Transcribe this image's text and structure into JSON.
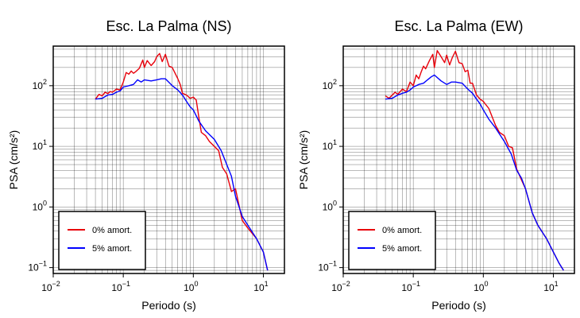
{
  "chart_data": [
    {
      "type": "line",
      "title": "Esc. La Palma (NS)",
      "xlabel": "Periodo (s)",
      "ylabel": "PSA (cm/s²)",
      "xscale": "log",
      "yscale": "log",
      "xlim": [
        0.01,
        20
      ],
      "ylim": [
        0.08,
        450
      ],
      "grid": true,
      "legend_position": "bottom-left",
      "x_ticks": [
        {
          "value": 0.01,
          "base": "10",
          "exp": "−2"
        },
        {
          "value": 0.1,
          "base": "10",
          "exp": "−1"
        },
        {
          "value": 1,
          "base": "10",
          "exp": "0"
        },
        {
          "value": 10,
          "base": "10",
          "exp": "1"
        }
      ],
      "y_ticks": [
        {
          "value": 0.1,
          "base": "10",
          "exp": "−1"
        },
        {
          "value": 1,
          "base": "10",
          "exp": "0"
        },
        {
          "value": 10,
          "base": "10",
          "exp": "1"
        },
        {
          "value": 100,
          "base": "10",
          "exp": "2"
        }
      ],
      "series": [
        {
          "name": "0% amort.",
          "color": "#e8000b",
          "x": [
            0.04,
            0.045,
            0.05,
            0.055,
            0.06,
            0.065,
            0.07,
            0.08,
            0.09,
            0.1,
            0.11,
            0.12,
            0.13,
            0.14,
            0.15,
            0.17,
            0.19,
            0.2,
            0.22,
            0.25,
            0.28,
            0.3,
            0.33,
            0.36,
            0.4,
            0.45,
            0.5,
            0.55,
            0.6,
            0.65,
            0.7,
            0.8,
            0.9,
            1.0,
            1.1,
            1.2,
            1.3,
            1.5,
            1.7,
            2.0,
            2.3,
            2.6,
            3.0,
            3.5,
            4.0,
            5.0,
            6.0,
            8.0,
            10.0,
            11.5
          ],
          "y": [
            60,
            72,
            68,
            78,
            74,
            80,
            78,
            88,
            85,
            115,
            165,
            155,
            175,
            160,
            170,
            195,
            265,
            200,
            260,
            215,
            250,
            300,
            340,
            250,
            330,
            210,
            200,
            160,
            130,
            105,
            75,
            70,
            62,
            65,
            58,
            30,
            17,
            15,
            12,
            10,
            8.5,
            4.5,
            3.5,
            1.8,
            2.0,
            0.6,
            0.45,
            0.3,
            0.18,
            0.09
          ]
        },
        {
          "name": "5% amort.",
          "color": "#0000ff",
          "x": [
            0.04,
            0.05,
            0.06,
            0.07,
            0.08,
            0.09,
            0.1,
            0.12,
            0.14,
            0.16,
            0.18,
            0.2,
            0.25,
            0.3,
            0.35,
            0.4,
            0.5,
            0.6,
            0.7,
            0.8,
            0.9,
            1.0,
            1.2,
            1.5,
            2.0,
            2.5,
            3.0,
            3.5,
            4.0,
            5.0,
            6.0,
            8.0,
            10.0,
            11.5
          ],
          "y": [
            60,
            62,
            70,
            72,
            78,
            82,
            95,
            100,
            105,
            125,
            115,
            125,
            120,
            125,
            130,
            130,
            100,
            85,
            70,
            55,
            45,
            40,
            26,
            18,
            13,
            8.5,
            5,
            3.2,
            1.5,
            0.7,
            0.5,
            0.3,
            0.18,
            0.09
          ]
        }
      ]
    },
    {
      "type": "line",
      "title": "Esc. La Palma (EW)",
      "xlabel": "Periodo (s)",
      "ylabel": "PSA (cm/s²)",
      "xscale": "log",
      "yscale": "log",
      "xlim": [
        0.01,
        20
      ],
      "ylim": [
        0.08,
        450
      ],
      "grid": true,
      "legend_position": "bottom-left",
      "x_ticks": [
        {
          "value": 0.01,
          "base": "10",
          "exp": "−2"
        },
        {
          "value": 0.1,
          "base": "10",
          "exp": "−1"
        },
        {
          "value": 1,
          "base": "10",
          "exp": "0"
        },
        {
          "value": 10,
          "base": "10",
          "exp": "1"
        }
      ],
      "y_ticks": [
        {
          "value": 0.1,
          "base": "10",
          "exp": "−1"
        },
        {
          "value": 1,
          "base": "10",
          "exp": "0"
        },
        {
          "value": 10,
          "base": "10",
          "exp": "1"
        },
        {
          "value": 100,
          "base": "10",
          "exp": "2"
        }
      ],
      "series": [
        {
          "name": "0% amort.",
          "color": "#e8000b",
          "x": [
            0.04,
            0.045,
            0.05,
            0.055,
            0.06,
            0.07,
            0.08,
            0.09,
            0.1,
            0.11,
            0.12,
            0.13,
            0.14,
            0.15,
            0.17,
            0.19,
            0.2,
            0.22,
            0.25,
            0.28,
            0.3,
            0.33,
            0.36,
            0.4,
            0.45,
            0.5,
            0.55,
            0.6,
            0.65,
            0.7,
            0.8,
            0.9,
            1.0,
            1.2,
            1.5,
            1.7,
            2.0,
            2.3,
            2.6,
            3.0,
            3.5,
            4.0,
            5.0,
            6.0,
            8.0,
            10.0,
            12.0,
            14.0
          ],
          "y": [
            68,
            62,
            70,
            78,
            72,
            88,
            80,
            115,
            100,
            150,
            130,
            170,
            210,
            190,
            260,
            330,
            200,
            380,
            300,
            240,
            320,
            220,
            290,
            370,
            240,
            230,
            170,
            180,
            110,
            110,
            70,
            60,
            55,
            42,
            22,
            17,
            15,
            10,
            9.5,
            4.2,
            2.8,
            2.0,
            0.8,
            0.5,
            0.3,
            0.18,
            0.12,
            0.09
          ]
        },
        {
          "name": "5% amort.",
          "color": "#0000ff",
          "x": [
            0.04,
            0.05,
            0.06,
            0.07,
            0.08,
            0.09,
            0.1,
            0.12,
            0.14,
            0.16,
            0.18,
            0.2,
            0.25,
            0.3,
            0.35,
            0.4,
            0.5,
            0.6,
            0.7,
            0.8,
            0.9,
            1.0,
            1.2,
            1.5,
            2.0,
            2.5,
            3.0,
            3.5,
            4.0,
            5.0,
            6.0,
            8.0,
            10.0,
            12.0,
            14.0
          ],
          "y": [
            60,
            62,
            70,
            75,
            78,
            85,
            95,
            105,
            110,
            125,
            140,
            150,
            120,
            105,
            115,
            115,
            110,
            88,
            75,
            60,
            50,
            40,
            28,
            20,
            12,
            7.5,
            4,
            3,
            2.0,
            0.8,
            0.5,
            0.3,
            0.18,
            0.12,
            0.09
          ]
        }
      ]
    }
  ]
}
